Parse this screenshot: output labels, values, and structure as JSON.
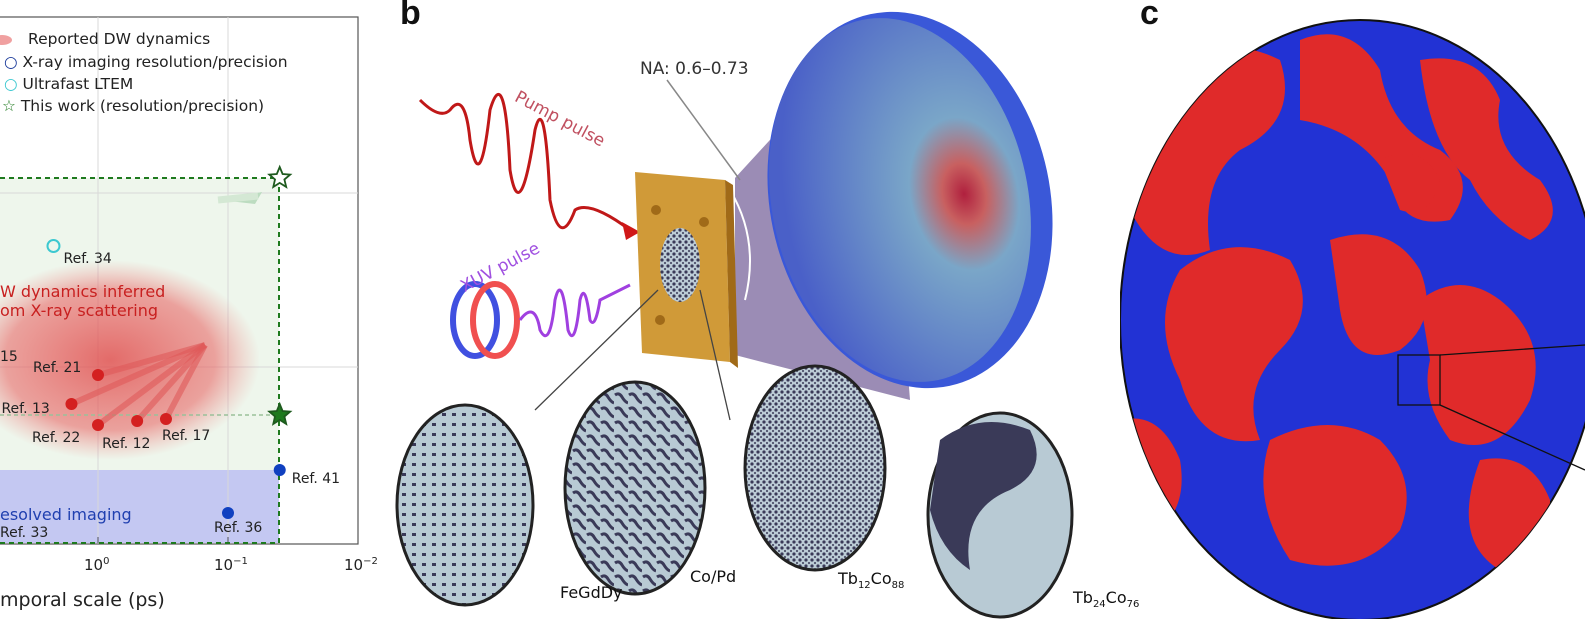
{
  "panel_a": {
    "legend": [
      {
        "label": "Reported DW dynamics",
        "marker": "red-blob",
        "color": "#e05050"
      },
      {
        "label": "X-ray imaging resolution/precision",
        "marker": "open-circle",
        "color": "#1a3a9a"
      },
      {
        "label": "Ultrafast LTEM",
        "marker": "open-circle",
        "color": "#3cc8d0"
      },
      {
        "label": "This work (resolution/precision)",
        "marker": "open-star",
        "color": "#1e7a1e"
      }
    ],
    "region_labels": {
      "scattering_line1": "W dynamics inferred",
      "scattering_line2": "om X-ray scattering",
      "imaging": "esolved imaging"
    },
    "xlabel": "mporal scale (ps)",
    "chart_data": {
      "type": "scatter",
      "x_scale": "log-reversed",
      "xlim": [
        10,
        0.01
      ],
      "x_ticks": [
        {
          "value": 1,
          "label": "10",
          "exp": "0"
        },
        {
          "value": 0.1,
          "label": "10",
          "exp": "−1"
        },
        {
          "value": 0.01,
          "label": "10",
          "exp": "−2"
        }
      ],
      "grid": true,
      "points": [
        {
          "label": "Ref. 34",
          "x": 2.2,
          "series": "Ultrafast LTEM",
          "color": "#3cc8d0"
        },
        {
          "label": "15",
          "x": null,
          "series": "Reported DW dynamics",
          "color": "#d42020"
        },
        {
          "label": "Ref. 21",
          "x": 1.0,
          "series": "Reported DW dynamics",
          "color": "#d42020"
        },
        {
          "label": "Ref. 13",
          "x": 1.6,
          "series": "Reported DW dynamics",
          "color": "#d42020"
        },
        {
          "label": "Ref. 22",
          "x": 1.0,
          "series": "Reported DW dynamics",
          "color": "#d42020"
        },
        {
          "label": "Ref. 12",
          "x": 0.5,
          "series": "Reported DW dynamics",
          "color": "#d42020"
        },
        {
          "label": "Ref. 17",
          "x": 0.3,
          "series": "Reported DW dynamics",
          "color": "#d42020"
        },
        {
          "label": "Ref. 41",
          "x": 0.04,
          "series": "X-ray imaging",
          "color": "#1040c0"
        },
        {
          "label": "Ref. 36",
          "x": 0.1,
          "series": "X-ray imaging",
          "color": "#1040c0"
        },
        {
          "label": "Ref. 33",
          "x": null,
          "series": "X-ray imaging",
          "color": "#1040c0"
        }
      ],
      "this_work": [
        {
          "x": 0.04,
          "kind": "resolution",
          "marker": "open-star"
        },
        {
          "x": 0.04,
          "kind": "precision",
          "marker": "filled-star"
        }
      ]
    }
  },
  "panel_b": {
    "letter": "b",
    "na_label": "NA: 0.6–0.73",
    "pump_label": "Pump pulse",
    "xuv_label": "XUV pulse",
    "materials": [
      {
        "name": "FeGdDy",
        "sub1": "",
        "mid": "",
        "sub2": ""
      },
      {
        "name": "Co/Pd",
        "sub1": "",
        "mid": "",
        "sub2": ""
      },
      {
        "name": "Tb",
        "sub1": "12",
        "mid": "Co",
        "sub2": "88"
      },
      {
        "name": "Tb",
        "sub1": "24",
        "mid": "Co",
        "sub2": "76"
      }
    ]
  },
  "panel_c": {
    "letter": "c",
    "colors": {
      "up": "#e02828",
      "down": "#2030d0"
    }
  }
}
